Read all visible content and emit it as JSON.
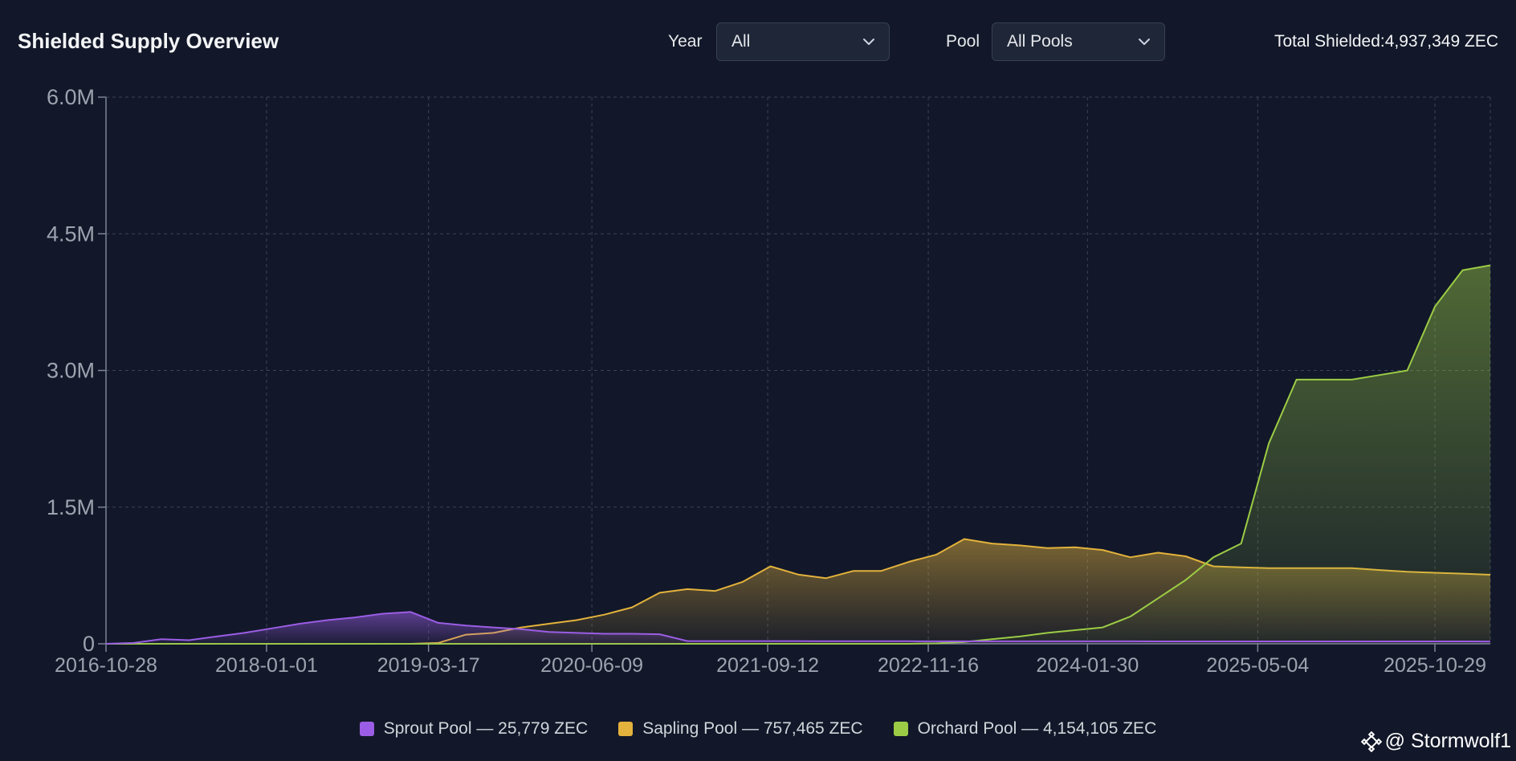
{
  "header": {
    "title": "Shielded Supply Overview",
    "year_label": "Year",
    "year_value": "All",
    "pool_label": "Pool",
    "pool_value": "All Pools",
    "total_label": "Total Shielded:",
    "total_value": "4,937,349 ZEC"
  },
  "watermark": {
    "icon": "binance-diamond-icon",
    "text": "@ Stormwolf1"
  },
  "chart_data": {
    "type": "area",
    "title": "",
    "xlabel": "",
    "ylabel": "",
    "grid": true,
    "legend_position": "bottom",
    "ylim": [
      0,
      6000000
    ],
    "y_ticks": [
      {
        "label": "0",
        "value": 0
      },
      {
        "label": "1.5M",
        "value": 1500000
      },
      {
        "label": "3.0M",
        "value": 3000000
      },
      {
        "label": "4.5M",
        "value": 4500000
      },
      {
        "label": "6.0M",
        "value": 6000000
      }
    ],
    "x_ticks": [
      "2016-10-28",
      "2018-01-01",
      "2019-03-17",
      "2020-06-09",
      "2021-09-12",
      "2022-11-16",
      "2024-01-30",
      "2025-05-04",
      "2025-10-29"
    ],
    "x_tick_positions": [
      0,
      0.116,
      0.233,
      0.351,
      0.478,
      0.594,
      0.709,
      0.832,
      0.96
    ],
    "x": [
      0,
      0.02,
      0.04,
      0.06,
      0.08,
      0.1,
      0.12,
      0.14,
      0.16,
      0.18,
      0.2,
      0.22,
      0.24,
      0.26,
      0.28,
      0.3,
      0.32,
      0.34,
      0.36,
      0.38,
      0.4,
      0.42,
      0.44,
      0.46,
      0.48,
      0.5,
      0.52,
      0.54,
      0.56,
      0.58,
      0.6,
      0.62,
      0.64,
      0.66,
      0.68,
      0.7,
      0.72,
      0.74,
      0.76,
      0.78,
      0.8,
      0.82,
      0.84,
      0.86,
      0.88,
      0.9,
      0.92,
      0.94,
      0.96,
      0.98,
      1.0
    ],
    "series": [
      {
        "name": "Sprout Pool — 25,779 ZEC",
        "color": "#9b5de5",
        "values": [
          0,
          10000,
          50000,
          40000,
          80000,
          120000,
          170000,
          220000,
          260000,
          290000,
          330000,
          350000,
          230000,
          200000,
          180000,
          160000,
          130000,
          120000,
          110000,
          110000,
          105000,
          30000,
          30000,
          30000,
          30000,
          30000,
          28000,
          28000,
          28000,
          28000,
          27000,
          27000,
          27000,
          27000,
          27000,
          27000,
          27000,
          27000,
          26000,
          26000,
          26000,
          26000,
          26000,
          26000,
          26000,
          26000,
          26000,
          26000,
          26000,
          26000,
          25779
        ]
      },
      {
        "name": "Sapling Pool — 757,465 ZEC",
        "color": "#e3b23c",
        "values": [
          0,
          0,
          0,
          0,
          0,
          0,
          0,
          0,
          0,
          0,
          0,
          0,
          10000,
          100000,
          120000,
          180000,
          220000,
          260000,
          320000,
          400000,
          560000,
          600000,
          580000,
          680000,
          850000,
          760000,
          720000,
          800000,
          800000,
          900000,
          980000,
          1150000,
          1100000,
          1080000,
          1050000,
          1060000,
          1030000,
          950000,
          1000000,
          960000,
          850000,
          840000,
          830000,
          830000,
          830000,
          830000,
          810000,
          790000,
          780000,
          770000,
          757465
        ]
      },
      {
        "name": "Orchard Pool — 4,154,105 ZEC",
        "color": "#9ccc45",
        "values": [
          0,
          0,
          0,
          0,
          0,
          0,
          0,
          0,
          0,
          0,
          0,
          0,
          0,
          0,
          0,
          0,
          0,
          0,
          0,
          0,
          0,
          0,
          0,
          0,
          0,
          0,
          0,
          0,
          0,
          0,
          5000,
          20000,
          50000,
          80000,
          120000,
          150000,
          180000,
          300000,
          500000,
          700000,
          950000,
          1100000,
          2200000,
          2900000,
          2900000,
          2900000,
          2950000,
          3000000,
          3700000,
          4100000,
          4154105
        ]
      }
    ]
  }
}
